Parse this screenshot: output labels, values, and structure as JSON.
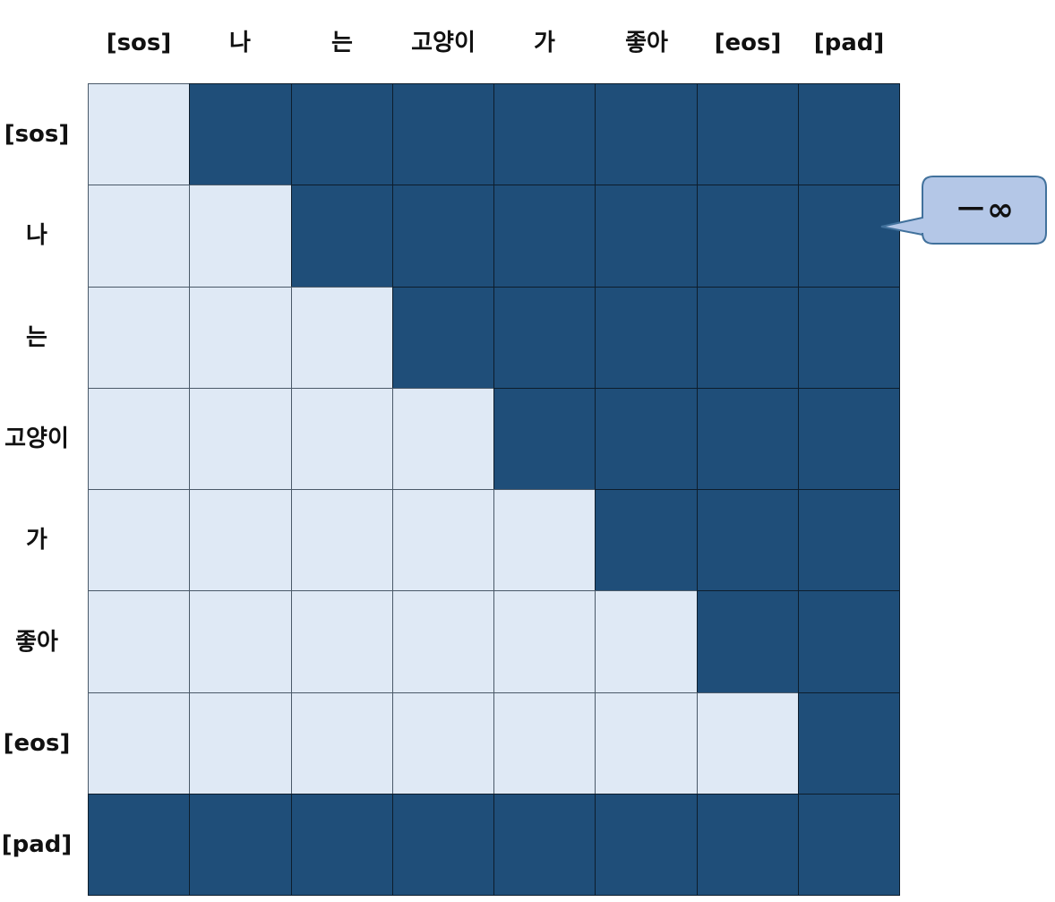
{
  "tokens": [
    "[sos]",
    "나",
    "는",
    "고양이",
    "가",
    "좋아",
    "[eos]",
    "[pad]"
  ],
  "mask": [
    [
      1,
      0,
      0,
      0,
      0,
      0,
      0,
      0
    ],
    [
      1,
      1,
      0,
      0,
      0,
      0,
      0,
      0
    ],
    [
      1,
      1,
      1,
      0,
      0,
      0,
      0,
      0
    ],
    [
      1,
      1,
      1,
      1,
      0,
      0,
      0,
      0
    ],
    [
      1,
      1,
      1,
      1,
      1,
      0,
      0,
      0
    ],
    [
      1,
      1,
      1,
      1,
      1,
      1,
      0,
      0
    ],
    [
      1,
      1,
      1,
      1,
      1,
      1,
      1,
      0
    ],
    [
      0,
      0,
      0,
      0,
      0,
      0,
      0,
      0
    ]
  ],
  "callout": {
    "text": "－∞"
  },
  "colors": {
    "masked": "#1f4e79",
    "allowed": "#dfe9f5",
    "callout_fill": "#b4c7e7",
    "callout_border": "#41719c"
  }
}
